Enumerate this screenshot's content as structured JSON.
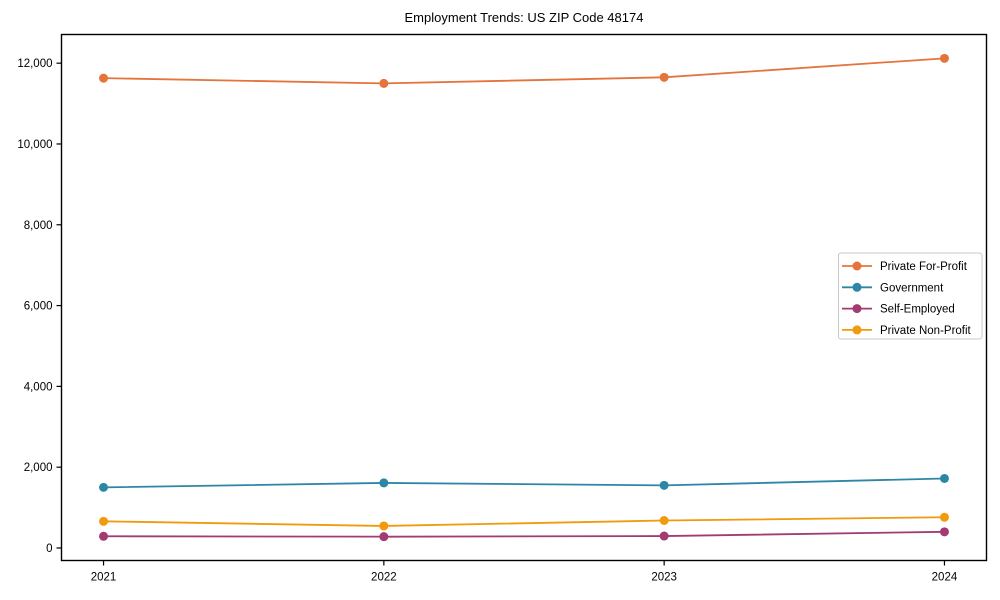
{
  "title": "Employment Trends: US ZIP Code 48174",
  "chart_data": {
    "type": "line",
    "title": "Employment Trends: US ZIP Code 48174",
    "x": [
      2021,
      2022,
      2023,
      2024
    ],
    "xtick_labels": [
      "2021",
      "2022",
      "2023",
      "2024"
    ],
    "yticks": [
      0,
      2000,
      4000,
      6000,
      8000,
      10000,
      12000
    ],
    "ytick_labels": [
      "0",
      "2,000",
      "4,000",
      "6,000",
      "8,000",
      "10,000",
      "12,000"
    ],
    "ylim": [
      -310,
      12710
    ],
    "xlim": [
      2020.85,
      2024.15
    ],
    "grid": false,
    "legend_position": "right",
    "marker": "circle",
    "series": [
      {
        "name": "Private For-Profit",
        "color": "#E4743C",
        "values": [
          11630,
          11500,
          11650,
          12120
        ]
      },
      {
        "name": "Government",
        "color": "#2E86A6",
        "values": [
          1500,
          1610,
          1550,
          1720
        ]
      },
      {
        "name": "Self-Employed",
        "color": "#A23B72",
        "values": [
          290,
          280,
          295,
          400
        ]
      },
      {
        "name": "Private Non-Profit",
        "color": "#F09A0C",
        "values": [
          660,
          545,
          680,
          760
        ]
      }
    ],
    "legend": {
      "labels": [
        "Private For-Profit",
        "Government",
        "Self-Employed",
        "Private Non-Profit"
      ],
      "border_color": "#c8c8c8"
    },
    "axis_color": "#000000"
  }
}
